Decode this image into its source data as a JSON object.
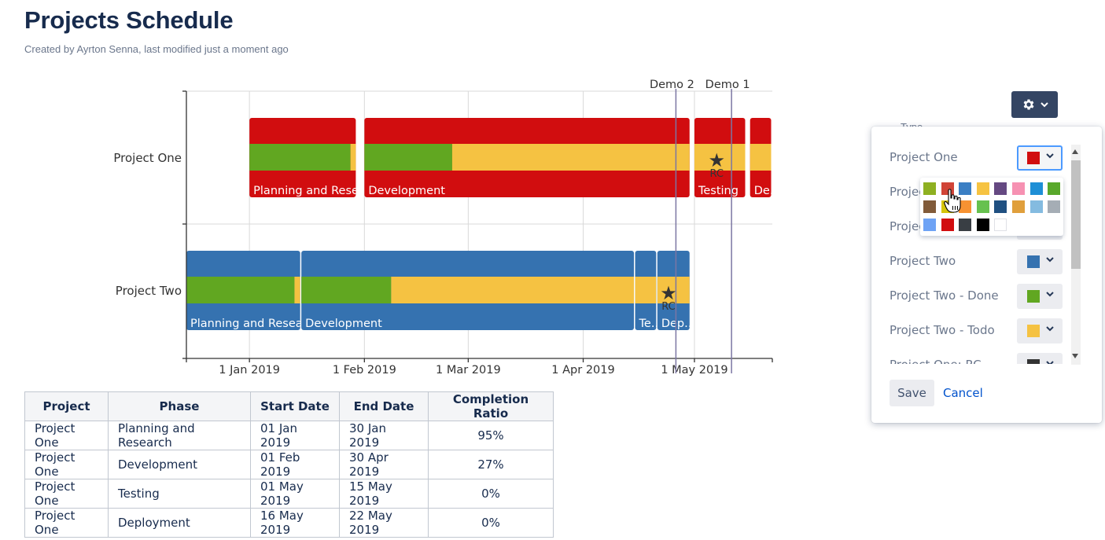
{
  "page": {
    "title": "Projects Schedule",
    "byline": "Created by Ayrton Senna, last modified just a moment ago"
  },
  "chart_data": {
    "type": "gantt",
    "x_axis": {
      "range": [
        "2018-12-15",
        "2019-05-22"
      ],
      "tick_labels": [
        "1 Jan 2019",
        "1 Feb 2019",
        "1 Mar 2019",
        "1 Apr 2019",
        "1 May 2019"
      ],
      "ticks": [
        "2019-01-01",
        "2019-02-01",
        "2019-03-01",
        "2019-04-01",
        "2019-05-01"
      ]
    },
    "grid": true,
    "milestones": [
      {
        "label": "Demo 2",
        "date": "2019-04-26"
      },
      {
        "label": "Demo 1",
        "date": "2019-05-11"
      }
    ],
    "projects": [
      {
        "name": "Project One",
        "color": "#d10d0f",
        "done_color": "#61a721",
        "todo_color": "#f5c242",
        "phases": [
          {
            "label": "Planning and Rese..",
            "start": "2019-01-01",
            "end": "2019-01-30",
            "ratio": 0.95
          },
          {
            "label": "Development",
            "start": "2019-02-01",
            "end": "2019-04-30",
            "ratio": 0.27
          },
          {
            "label": "Testing",
            "start": "2019-05-01",
            "end": "2019-05-15",
            "ratio": 0
          },
          {
            "label": "De..",
            "start": "2019-05-16",
            "end": "2019-05-22",
            "ratio": 0
          }
        ],
        "rc_marker": {
          "date": "2019-05-07",
          "label": "RC"
        }
      },
      {
        "name": "Project Two",
        "color": "#3572b0",
        "done_color": "#61a721",
        "todo_color": "#f5c242",
        "phases": [
          {
            "label": "Planning and Resea..",
            "start": "2018-12-15",
            "end": "2019-01-15",
            "ratio": 0.95
          },
          {
            "label": "Development",
            "start": "2019-01-15",
            "end": "2019-04-15",
            "ratio": 0.27
          },
          {
            "label": "Te..",
            "start": "2019-04-15",
            "end": "2019-04-21",
            "ratio": 0
          },
          {
            "label": "Dep..",
            "start": "2019-04-21",
            "end": "2019-04-30",
            "ratio": 0
          }
        ],
        "rc_marker": {
          "date": "2019-04-24",
          "label": "RC"
        }
      }
    ]
  },
  "table": {
    "headers": [
      "Project",
      "Phase",
      "Start Date",
      "End Date",
      "Completion Ratio"
    ],
    "rows": [
      [
        "Project One",
        "Planning and Research",
        "01 Jan 2019",
        "30 Jan 2019",
        "95%"
      ],
      [
        "Project One",
        "Development",
        "01 Feb 2019",
        "30 Apr 2019",
        "27%"
      ],
      [
        "Project One",
        "Testing",
        "01 May 2019",
        "15 May 2019",
        "0%"
      ],
      [
        "Project One",
        "Deployment",
        "16 May 2019",
        "22 May 2019",
        "0%"
      ]
    ]
  },
  "settings": {
    "gear_icon": "gear-icon",
    "type_label": "Type",
    "color_rows": [
      {
        "label": "Project One",
        "color": "#d10d0f",
        "active": true
      },
      {
        "label": "Project One - Done",
        "color": "#61a721",
        "active": false
      },
      {
        "label": "Project One - Todo",
        "color": "#f5c242",
        "active": false
      },
      {
        "label": "Project Two",
        "color": "#3572b0",
        "active": false
      },
      {
        "label": "Project Two - Done",
        "color": "#61a721",
        "active": false
      },
      {
        "label": "Project Two - Todo",
        "color": "#f5c242",
        "active": false
      },
      {
        "label": "Project One: RC",
        "color": "#333333",
        "active": false
      }
    ],
    "save_label": "Save",
    "cancel_label": "Cancel",
    "palette": [
      [
        "#8eb021",
        "#d04437",
        "#3b7fc4",
        "#f6c342",
        "#654982",
        "#f691b2",
        "#1e8fd6",
        "#59a82b"
      ],
      [
        "#815b3a",
        "#d6c50b",
        "#f79232",
        "#67c14f",
        "#205081",
        "#e09f3c",
        "#84bbe0",
        "#a5adb5"
      ],
      [
        "#6ea3f5",
        "#d10d0f",
        "#393e44",
        "#000000",
        "#ffffff"
      ]
    ]
  }
}
